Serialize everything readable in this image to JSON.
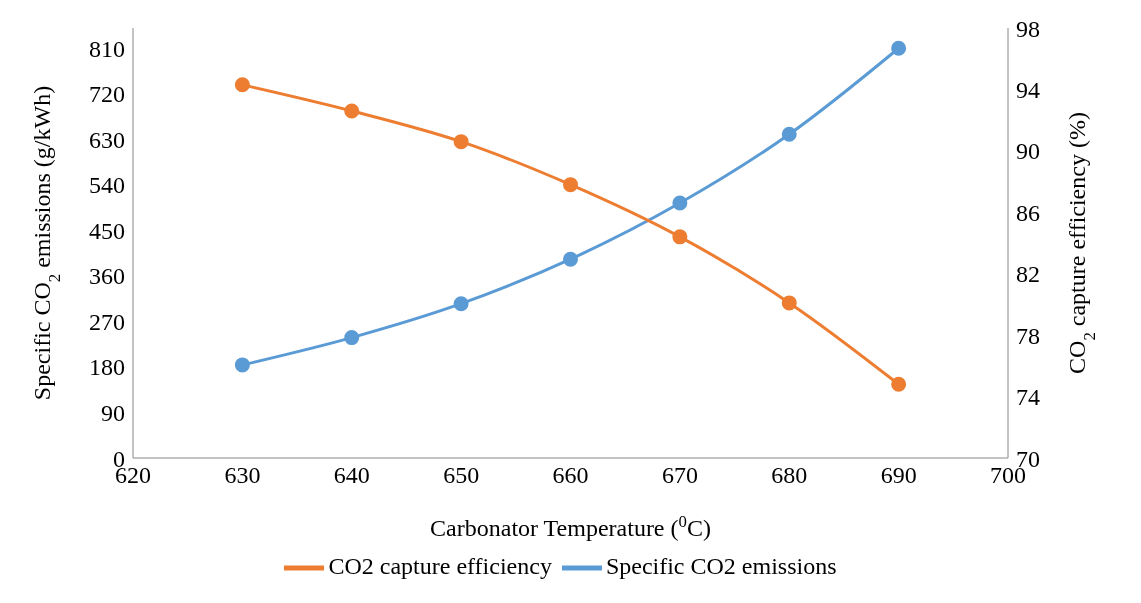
{
  "chart_data": {
    "type": "line",
    "xlabel": "Carbonator Temperature ($^{0}$C)",
    "ylabel": "Specific CO$_{2}$ emissions (g/kWh)",
    "y2label": "CO$_{2}$ capture efficiency (%)",
    "x": [
      630,
      640,
      650,
      660,
      670,
      680,
      690
    ],
    "xlim": [
      620,
      700
    ],
    "xticks": [
      620,
      630,
      640,
      650,
      660,
      670,
      680,
      690,
      700
    ],
    "ylim": [
      0,
      850
    ],
    "yticks": [
      0,
      90,
      180,
      270,
      360,
      450,
      540,
      630,
      720,
      810
    ],
    "y2lim": [
      70,
      98
    ],
    "y2ticks": [
      70,
      74,
      78,
      82,
      86,
      90,
      94,
      98
    ],
    "series": [
      {
        "name": "Specific CO2 emissions",
        "color": "#5b9bd5",
        "values": [
          184,
          238,
          305,
          393,
          504,
          640,
          810
        ]
      },
      {
        "name": "CO2 capture efficiency",
        "color": "#ed7d31",
        "axis": "y2",
        "values": [
          94.3,
          92.6,
          90.6,
          87.8,
          84.4,
          80.1,
          74.8
        ]
      }
    ],
    "marker": "circle",
    "grid": false,
    "legend": "bottom"
  }
}
